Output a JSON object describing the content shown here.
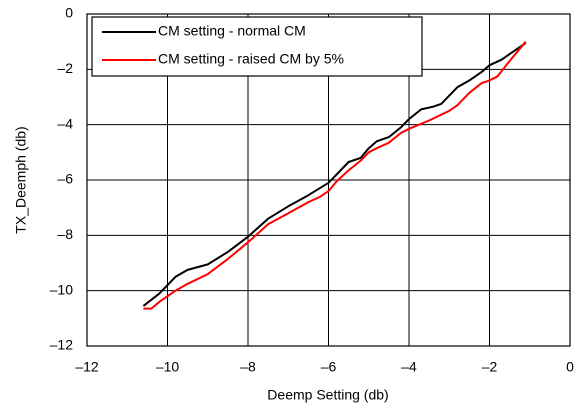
{
  "chart_data": {
    "type": "line",
    "x_label": "Deemp Setting (db)",
    "y_label": "TX_Deemph (db)",
    "xlim": [
      -12,
      0
    ],
    "ylim": [
      -12,
      0
    ],
    "xticks": [
      {
        "value": -12,
        "label": "–12"
      },
      {
        "value": -10,
        "label": "–10"
      },
      {
        "value": -8,
        "label": "–8"
      },
      {
        "value": -6,
        "label": "–6"
      },
      {
        "value": -4,
        "label": "–4"
      },
      {
        "value": -2,
        "label": "–2"
      },
      0
    ],
    "yticks": [
      0,
      {
        "value": -2,
        "label": "–2"
      },
      {
        "value": -4,
        "label": "–4"
      },
      {
        "value": -6,
        "label": "–6"
      },
      {
        "value": -8,
        "label": "–8"
      },
      {
        "value": -10,
        "label": "–10"
      },
      {
        "value": -12,
        "label": "–12"
      }
    ],
    "grid": true,
    "legend": "upper left",
    "series": [
      {
        "name": "CM setting - normal CM",
        "color": "#000000",
        "x": [
          -10.6,
          -10.2,
          -9.8,
          -9.5,
          -9,
          -8.5,
          -8,
          -7.5,
          -7,
          -6.5,
          -6,
          -5.8,
          -5.5,
          -5.2,
          -5,
          -4.8,
          -4.5,
          -4.2,
          -4,
          -3.7,
          -3.4,
          -3.2,
          -3,
          -2.8,
          -2.5,
          -2.2,
          -2,
          -1.7,
          -1.5,
          -1.1
        ],
        "values": [
          -10.55,
          -10.1,
          -9.5,
          -9.25,
          -9.05,
          -8.6,
          -8.05,
          -7.4,
          -6.95,
          -6.55,
          -6.1,
          -5.8,
          -5.35,
          -5.2,
          -4.85,
          -4.6,
          -4.45,
          -4.1,
          -3.8,
          -3.45,
          -3.35,
          -3.25,
          -2.95,
          -2.65,
          -2.4,
          -2.1,
          -1.85,
          -1.65,
          -1.45,
          -1.05
        ]
      },
      {
        "name": "CM setting - raised CM by 5%",
        "color": "#ff0000",
        "x": [
          -10.6,
          -10.4,
          -10.2,
          -9.8,
          -9.5,
          -9,
          -8.5,
          -8,
          -7.5,
          -7,
          -6.5,
          -6.2,
          -6,
          -5.8,
          -5.5,
          -5.2,
          -5,
          -4.8,
          -4.5,
          -4.2,
          -4,
          -3.5,
          -3,
          -2.8,
          -2.5,
          -2.2,
          -2,
          -1.8,
          -1.5,
          -1.1
        ],
        "values": [
          -10.65,
          -10.65,
          -10.4,
          -10.0,
          -9.75,
          -9.4,
          -8.85,
          -8.25,
          -7.6,
          -7.2,
          -6.8,
          -6.6,
          -6.4,
          -6.05,
          -5.65,
          -5.3,
          -5.0,
          -4.85,
          -4.65,
          -4.3,
          -4.15,
          -3.85,
          -3.5,
          -3.3,
          -2.85,
          -2.5,
          -2.4,
          -2.25,
          -1.7,
          -1.0
        ]
      }
    ]
  }
}
